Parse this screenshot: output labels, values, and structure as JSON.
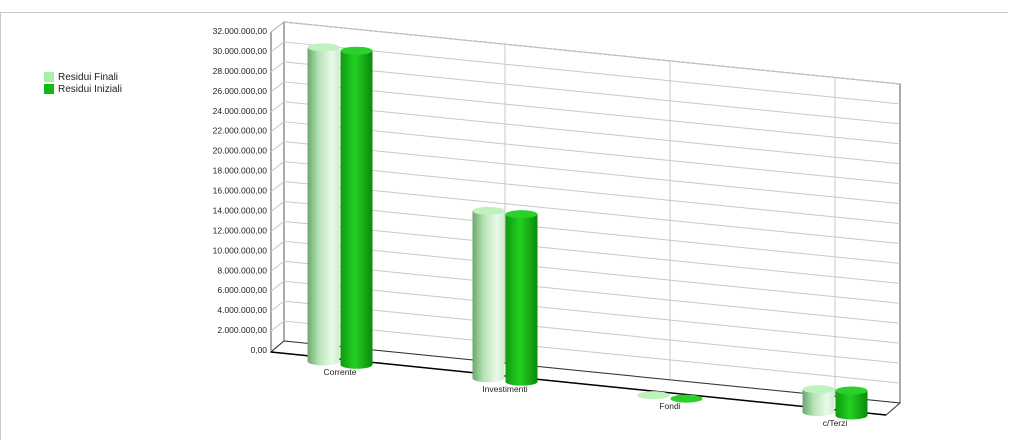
{
  "chart_data": {
    "type": "bar",
    "categories": [
      "Corrente",
      "Investimenti",
      "Fondi",
      "c/Terzi"
    ],
    "series": [
      {
        "name": "Residui Finali",
        "values": [
          31500000,
          16800000,
          0,
          2300000
        ],
        "color": "#a8f0a8"
      },
      {
        "name": "Residui Iniziali",
        "values": [
          31500000,
          16800000,
          0,
          2500000
        ],
        "color": "#11b811"
      }
    ],
    "y_ticks": [
      "0,00",
      "2.000.000,00",
      "4.000.000,00",
      "6.000.000,00",
      "8.000.000,00",
      "10.000.000,00",
      "12.000.000,00",
      "14.000.000,00",
      "16.000.000,00",
      "18.000.000,00",
      "20.000.000,00",
      "22.000.000,00",
      "24.000.000,00",
      "26.000.000,00",
      "28.000.000,00",
      "30.000.000,00",
      "32.000.000,00"
    ],
    "ylim": [
      0,
      32000000
    ],
    "grid": true,
    "legend_position": "top-left",
    "style": "3d-cylinder"
  }
}
